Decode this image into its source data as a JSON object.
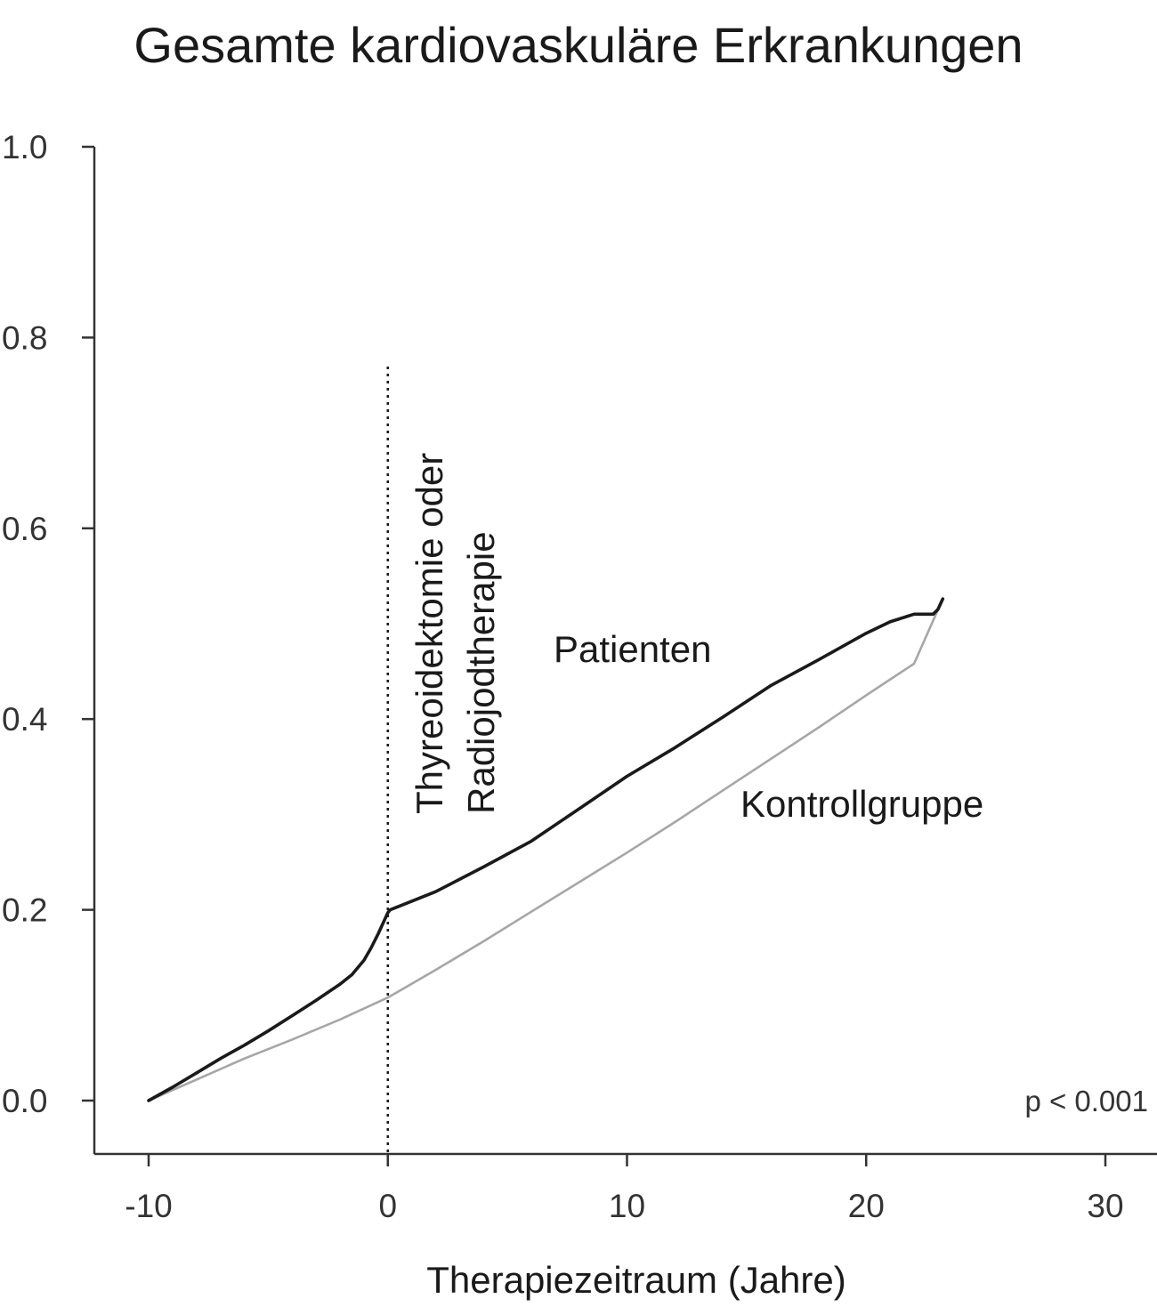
{
  "chart_data": {
    "type": "line",
    "title": "Gesamte kardiovaskuläre Erkrankungen",
    "xlabel": "Therapiezeitraum (Jahre)",
    "ylabel": "",
    "xlim": [
      -12,
      30.5
    ],
    "ylim": [
      -0.05,
      1.0
    ],
    "x_ticks": [
      -10,
      0,
      10,
      20,
      30
    ],
    "x_tick_labels": [
      "-10",
      "0",
      "10",
      "20",
      "30"
    ],
    "y_ticks": [
      0.0,
      0.2,
      0.4,
      0.6,
      0.8,
      1.0
    ],
    "y_tick_labels": [
      "0.0",
      "0.2",
      "0.4",
      "0.6",
      "0.8",
      "1.0"
    ],
    "grid": false,
    "series": [
      {
        "name": "Patienten",
        "color": "#1a1a1a",
        "x": [
          -10,
          -9,
          -8,
          -7,
          -6,
          -5,
          -4,
          -3,
          -2,
          -1.5,
          -1,
          -0.7,
          -0.4,
          -0.2,
          0,
          0.1,
          2,
          4,
          6,
          8,
          10,
          12,
          14,
          16,
          18,
          20,
          21,
          22,
          22.6,
          22.8,
          23.0,
          23.2
        ],
        "y": [
          0.0,
          0.014,
          0.029,
          0.044,
          0.058,
          0.073,
          0.089,
          0.105,
          0.122,
          0.132,
          0.147,
          0.16,
          0.175,
          0.186,
          0.197,
          0.2,
          0.219,
          0.245,
          0.272,
          0.306,
          0.34,
          0.37,
          0.402,
          0.435,
          0.462,
          0.49,
          0.502,
          0.51,
          0.51,
          0.51,
          0.515,
          0.526
        ]
      },
      {
        "name": "Kontrollgruppe",
        "color": "#a6a6a6",
        "x": [
          -10,
          -8,
          -6,
          -4,
          -2,
          0,
          2,
          4,
          6,
          8,
          10,
          12,
          14,
          16,
          18,
          20,
          22,
          23.2
        ],
        "y": [
          0.0,
          0.022,
          0.044,
          0.064,
          0.085,
          0.108,
          0.137,
          0.167,
          0.198,
          0.229,
          0.26,
          0.292,
          0.325,
          0.358,
          0.391,
          0.425,
          0.458,
          0.526
        ]
      }
    ],
    "annotations": {
      "vline_x": 0,
      "vline_label_line1": "Thyreoidektomie oder",
      "vline_label_line2": "Radiojodtherapie",
      "p_value": "p < 0.001"
    }
  }
}
